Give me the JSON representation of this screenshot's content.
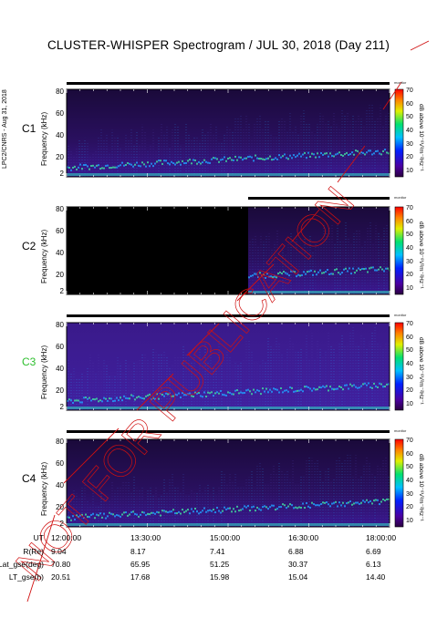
{
  "title": "CLUSTER-WHISPER Spectrogram / JUL 30, 2018 (Day 211)",
  "side_credit": "LPC2/CNRS - Aug 31, 2018",
  "watermark": "NOT FOR PUBLICATION",
  "monitor_label": "monitor",
  "panels": [
    {
      "name": "C1",
      "color": "#000000",
      "ylabel": "Frequency (kHz)",
      "yticks": [
        "80",
        "60",
        "40",
        "20",
        "2"
      ],
      "cblabel": "dB above 10⁻⁸V²m⁻²Hz⁻¹",
      "cbticks": [
        "70",
        "60",
        "50",
        "40",
        "30",
        "20",
        "10"
      ]
    },
    {
      "name": "C2",
      "color": "#000000",
      "ylabel": "Frequency (kHz)",
      "yticks": [
        "80",
        "60",
        "40",
        "20",
        "2"
      ],
      "cblabel": "dB above 10⁻⁸V²m⁻²Hz⁻¹",
      "cbticks": [
        "70",
        "60",
        "50",
        "40",
        "30",
        "20",
        "10"
      ]
    },
    {
      "name": "C3",
      "color": "#2fbf2f",
      "ylabel": "Frequency (kHz)",
      "yticks": [
        "80",
        "60",
        "40",
        "20",
        "2"
      ],
      "cblabel": "dB above 10⁻⁸V²m⁻²Hz⁻¹",
      "cbticks": [
        "70",
        "60",
        "50",
        "40",
        "30",
        "20",
        "10"
      ]
    },
    {
      "name": "C4",
      "color": "#000000",
      "ylabel": "Frequency (kHz)",
      "yticks": [
        "80",
        "60",
        "40",
        "20",
        "2"
      ],
      "cblabel": "dB above 10⁻⁸V²m⁻²Hz⁻¹",
      "cbticks": [
        "70",
        "60",
        "50",
        "40",
        "30",
        "20",
        "10"
      ]
    }
  ],
  "ephemeris": {
    "labels": [
      "UT",
      "R(Re)",
      "Lat_gse(deg)",
      "LT_gse(h)"
    ],
    "rows": [
      [
        "12:00:00",
        "13:30:00",
        "15:00:00",
        "16:30:00",
        "18:00:00"
      ],
      [
        "9.04",
        "8.17",
        "7.41",
        "6.88",
        "6.69"
      ],
      [
        "70.80",
        "65.95",
        "51.25",
        "30.37",
        "6.13"
      ],
      [
        "20.51",
        "17.68",
        "15.98",
        "15.04",
        "14.40"
      ]
    ]
  },
  "chart_data": {
    "type": "heatmap",
    "title": "CLUSTER-WHISPER Spectrogram / JUL 30, 2018 (Day 211)",
    "xlabel": "UT",
    "ylabel": "Frequency (kHz)",
    "x_ticks": [
      "12:00:00",
      "13:30:00",
      "15:00:00",
      "16:30:00",
      "18:00:00"
    ],
    "ylim": [
      2,
      80
    ],
    "colorbar": {
      "label": "dB above 10⁻⁸V²m⁻²Hz⁻¹",
      "range": [
        10,
        70
      ]
    },
    "panels": [
      "C1",
      "C2",
      "C3",
      "C4"
    ]
  }
}
